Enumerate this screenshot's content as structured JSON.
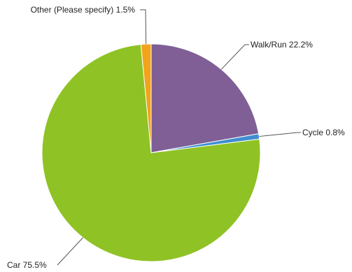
{
  "chart_data": {
    "type": "pie",
    "title": "",
    "slices": [
      {
        "name": "Walk/Run",
        "value": 22.2,
        "label": "Walk/Run 22.2%",
        "color": "#7f5f96"
      },
      {
        "name": "Cycle",
        "value": 0.8,
        "label": "Cycle 0.8%",
        "color": "#3f8fd0"
      },
      {
        "name": "Car",
        "value": 75.5,
        "label": "Car 75.5%",
        "color": "#8fc224"
      },
      {
        "name": "Other (Please specify)",
        "value": 1.5,
        "label": "Other (Please specify) 1.5%",
        "color": "#f2a31c"
      }
    ],
    "start_angle_deg": 0,
    "direction": "clockwise",
    "legend": "none"
  }
}
